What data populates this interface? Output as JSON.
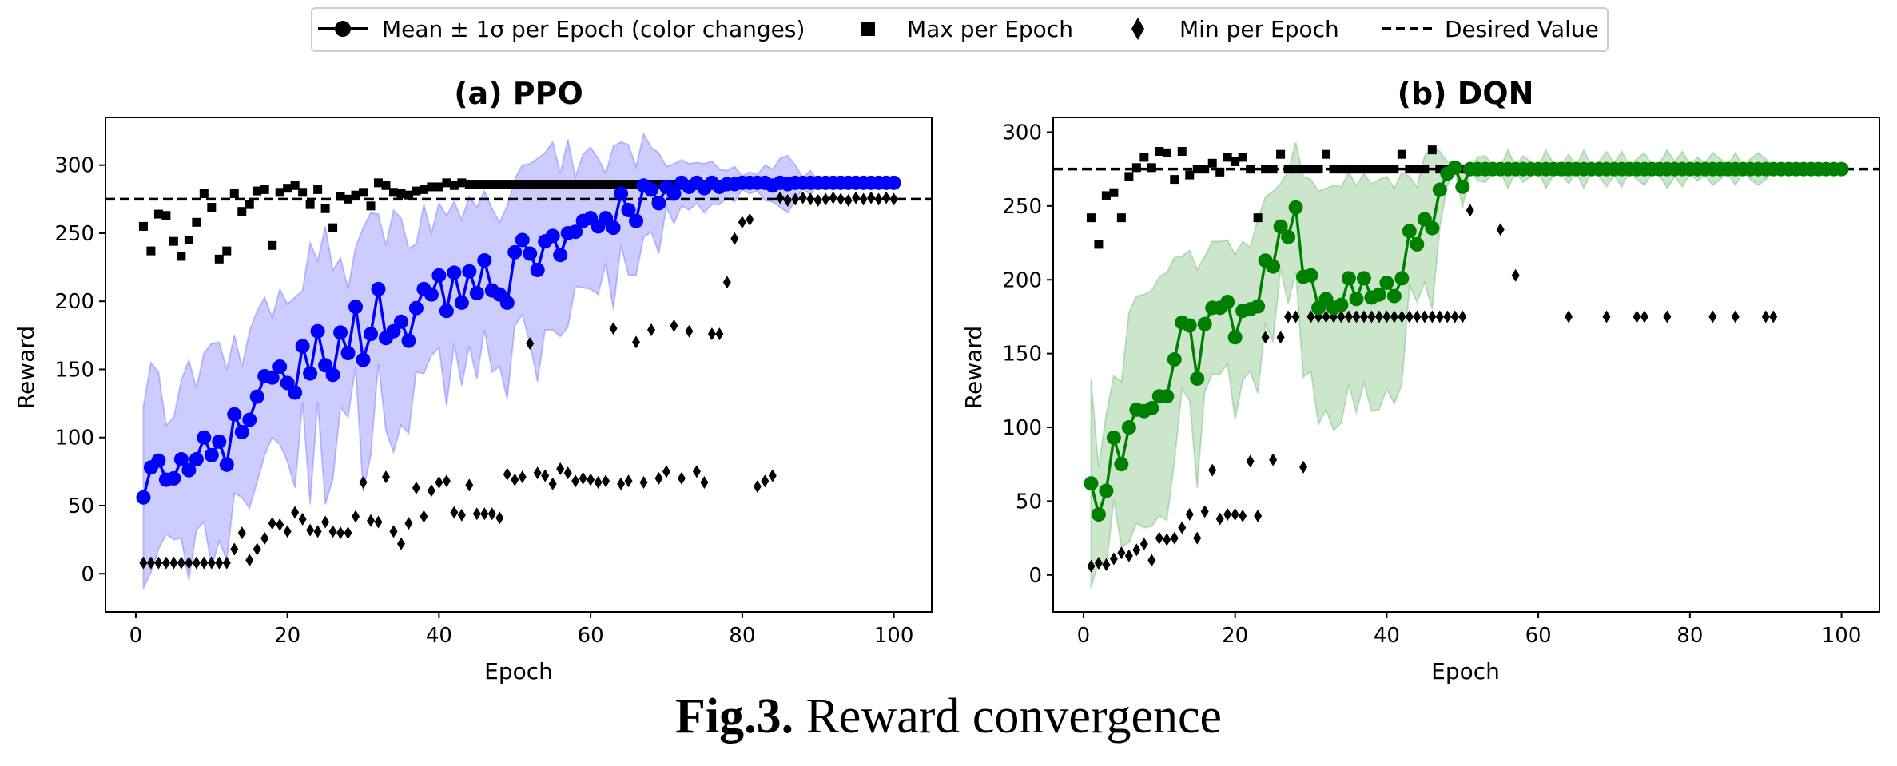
{
  "legend": {
    "items": [
      {
        "label": "Mean ± 1σ per Epoch (color changes)",
        "marker": "line-circle"
      },
      {
        "label": "Max per Epoch",
        "marker": "square"
      },
      {
        "label": "Min per Epoch",
        "marker": "diamond"
      },
      {
        "label": "Desired Value",
        "marker": "dashed-line"
      }
    ]
  },
  "caption": {
    "prefix": "Fig.3.",
    "text": "Reward convergence"
  },
  "chart_data": [
    {
      "type": "line",
      "title": "(a) PPO",
      "xlabel": "Epoch",
      "ylabel": "Reward",
      "xlim": [
        -4,
        105
      ],
      "ylim": [
        -28,
        335
      ],
      "xticks": [
        0,
        20,
        40,
        60,
        80,
        100
      ],
      "yticks": [
        0,
        50,
        100,
        150,
        200,
        250,
        300
      ],
      "color": "#0000ff",
      "band_color": "#0000ff",
      "desired_value": 275,
      "series": [
        {
          "name": "Mean ± 1σ per Epoch (color changes)",
          "x_start": 1,
          "mean": [
            56,
            78,
            83,
            69,
            70,
            84,
            76,
            84,
            100,
            87,
            97,
            80,
            117,
            104,
            113,
            130,
            145,
            144,
            152,
            140,
            133,
            167,
            147,
            178,
            153,
            146,
            177,
            162,
            196,
            157,
            176,
            209,
            173,
            178,
            185,
            171,
            195,
            209,
            205,
            219,
            193,
            221,
            199,
            222,
            206,
            230,
            208,
            205,
            199,
            236,
            245,
            235,
            223,
            244,
            248,
            234,
            250,
            251,
            259,
            261,
            255,
            261,
            254,
            279,
            267,
            259,
            285,
            282,
            272,
            284,
            279,
            287,
            284,
            287,
            283,
            287,
            284,
            286,
            286,
            287,
            287,
            287,
            287,
            285,
            287,
            286,
            287,
            287,
            287,
            287,
            287,
            287,
            287,
            287,
            287,
            287,
            287,
            287,
            287,
            287
          ]
        },
        {
          "name": "Max per Epoch",
          "x_start": 1,
          "values": [
            255,
            237,
            264,
            263,
            244,
            233,
            245,
            258,
            279,
            269,
            231,
            237,
            279,
            266,
            271,
            281,
            282,
            241,
            280,
            283,
            285,
            280,
            271,
            282,
            268,
            254,
            277,
            275,
            278,
            280,
            270,
            287,
            285,
            280,
            279,
            278,
            281,
            282,
            284,
            284,
            287,
            285,
            287,
            286,
            286,
            286,
            286,
            286,
            286,
            286,
            286,
            286,
            286,
            286,
            286,
            286,
            286,
            286,
            286,
            286,
            286,
            286,
            286,
            286,
            286,
            286,
            286,
            286,
            286,
            286,
            286,
            286,
            286,
            286,
            286,
            286,
            286,
            286,
            286,
            286,
            286,
            286,
            286,
            286,
            286,
            286,
            286,
            286,
            286,
            286,
            286,
            286,
            286,
            286,
            286,
            286,
            286,
            286,
            286,
            286
          ]
        },
        {
          "name": "Min per Epoch",
          "x_start": 1,
          "values": [
            8,
            8,
            8,
            8,
            8,
            8,
            8,
            8,
            8,
            8,
            8,
            8,
            18,
            30,
            10,
            18,
            26,
            37,
            36,
            31,
            45,
            40,
            32,
            31,
            38,
            31,
            30,
            30,
            42,
            67,
            39,
            38,
            71,
            31,
            22,
            37,
            63,
            42,
            61,
            67,
            68,
            45,
            43,
            65,
            44,
            44,
            44,
            41,
            73,
            69,
            71,
            169,
            74,
            72,
            66,
            77,
            74,
            68,
            70,
            69,
            67,
            68,
            180,
            66,
            68,
            170,
            67,
            179,
            70,
            75,
            182,
            70,
            178,
            75,
            67,
            176,
            176,
            214,
            246,
            258,
            260,
            64,
            68,
            72,
            276,
            274,
            275,
            276,
            275,
            274,
            275,
            276,
            275,
            274,
            276,
            275,
            276,
            275,
            276,
            275
          ]
        }
      ],
      "band_upper": [
        123,
        155,
        148,
        109,
        115,
        142,
        157,
        136,
        162,
        169,
        170,
        150,
        175,
        152,
        178,
        193,
        203,
        188,
        209,
        198,
        203,
        208,
        243,
        230,
        255,
        223,
        232,
        209,
        240,
        254,
        265,
        264,
        241,
        267,
        261,
        239,
        242,
        271,
        250,
        272,
        263,
        273,
        260,
        277,
        269,
        281,
        268,
        258,
        270,
        290,
        300,
        301,
        305,
        309,
        317,
        294,
        319,
        291,
        308,
        313,
        305,
        294,
        314,
        317,
        315,
        299,
        323,
        313,
        309,
        299,
        301,
        304,
        301,
        302,
        301,
        303,
        297,
        296,
        299,
        292,
        295,
        293,
        300,
        297,
        305,
        307,
        300,
        291,
        296,
        288,
        288,
        288,
        290,
        288,
        288,
        288,
        288,
        288,
        288,
        288
      ]
    },
    {
      "type": "line",
      "title": "(b) DQN",
      "xlabel": "Epoch",
      "ylabel": "Reward",
      "xlim": [
        -4,
        105
      ],
      "ylim": [
        -25,
        310
      ],
      "xticks": [
        0,
        20,
        40,
        60,
        80,
        100
      ],
      "yticks": [
        0,
        50,
        100,
        150,
        200,
        250,
        300
      ],
      "color": "#008000",
      "band_color": "#008000",
      "desired_value": 275,
      "series": [
        {
          "name": "Mean ± 1σ per Epoch (color changes)",
          "x_start": 1,
          "mean": [
            62,
            41,
            57,
            93,
            75,
            100,
            112,
            111,
            113,
            121,
            121,
            146,
            171,
            169,
            133,
            170,
            181,
            181,
            185,
            161,
            179,
            180,
            182,
            213,
            209,
            236,
            229,
            249,
            202,
            203,
            181,
            187,
            181,
            183,
            201,
            187,
            201,
            188,
            190,
            198,
            189,
            201,
            233,
            224,
            241,
            235,
            261,
            272,
            276,
            263,
            275,
            275,
            275,
            275,
            275,
            275,
            275,
            275,
            275,
            275,
            275,
            275,
            275,
            275,
            275,
            275,
            275,
            275,
            275,
            275,
            275,
            275,
            275,
            275,
            275,
            275,
            275,
            275,
            275,
            275,
            275,
            275,
            275,
            275,
            275,
            275,
            275,
            275,
            275,
            275,
            275,
            275,
            275,
            275,
            275,
            275,
            275,
            275,
            275,
            275
          ]
        },
        {
          "name": "Max per Epoch",
          "x_start": 1,
          "values": [
            242,
            224,
            257,
            259,
            242,
            270,
            276,
            283,
            276,
            287,
            286,
            268,
            287,
            271,
            275,
            275,
            279,
            273,
            283,
            280,
            283,
            275,
            242,
            275,
            275,
            285,
            275,
            275,
            275,
            275,
            275,
            285,
            275,
            275,
            275,
            275,
            275,
            275,
            275,
            275,
            275,
            285,
            275,
            275,
            275,
            288,
            275,
            275,
            275,
            275,
            275,
            275,
            275,
            275,
            275,
            275,
            275,
            275,
            275,
            275,
            275,
            275,
            275,
            275,
            275,
            275,
            275,
            275,
            275,
            275,
            275,
            275,
            275,
            275,
            275,
            275,
            275,
            275,
            275,
            275,
            275,
            275,
            275,
            275,
            275,
            275,
            275,
            275,
            275,
            275,
            275,
            275,
            275,
            275,
            275,
            275,
            275,
            275,
            275,
            275
          ]
        },
        {
          "name": "Min per Epoch",
          "x_start": 1,
          "values": [
            6,
            8,
            7,
            11,
            15,
            13,
            17,
            21,
            10,
            25,
            24,
            25,
            32,
            41,
            25,
            43,
            71,
            38,
            41,
            41,
            40,
            77,
            40,
            161,
            78,
            161,
            175,
            175,
            73,
            175,
            175,
            175,
            175,
            175,
            175,
            175,
            175,
            175,
            175,
            175,
            175,
            175,
            175,
            175,
            175,
            175,
            175,
            175,
            175,
            175,
            247,
            275,
            275,
            275,
            234,
            275,
            203,
            275,
            275,
            275,
            275,
            275,
            275,
            175,
            275,
            275,
            275,
            275,
            175,
            275,
            275,
            275,
            175,
            175,
            275,
            275,
            175,
            275,
            275,
            275,
            275,
            275,
            175,
            275,
            275,
            175,
            275,
            275,
            275,
            175,
            175,
            275,
            275,
            275,
            275,
            275,
            275,
            275,
            275,
            275
          ]
        }
      ],
      "band_upper": [
        133,
        73,
        109,
        135,
        131,
        178,
        189,
        190,
        193,
        202,
        205,
        215,
        216,
        220,
        207,
        216,
        226,
        226,
        227,
        217,
        226,
        222,
        241,
        256,
        260,
        265,
        274,
        293,
        270,
        268,
        260,
        262,
        264,
        263,
        273,
        264,
        272,
        265,
        268,
        270,
        262,
        273,
        270,
        263,
        284,
        290,
        287,
        280,
        278,
        277,
        276,
        283,
        284,
        278,
        277,
        288,
        277,
        284,
        280,
        276,
        288,
        279,
        278,
        285,
        277,
        288,
        277,
        280,
        287,
        279,
        287,
        277,
        282,
        286,
        278,
        279,
        288,
        280,
        287,
        278,
        283,
        279,
        286,
        282,
        278,
        286,
        277,
        282,
        286,
        282,
        277,
        276,
        276,
        276,
        276,
        276,
        276,
        276,
        276,
        276
      ]
    }
  ]
}
